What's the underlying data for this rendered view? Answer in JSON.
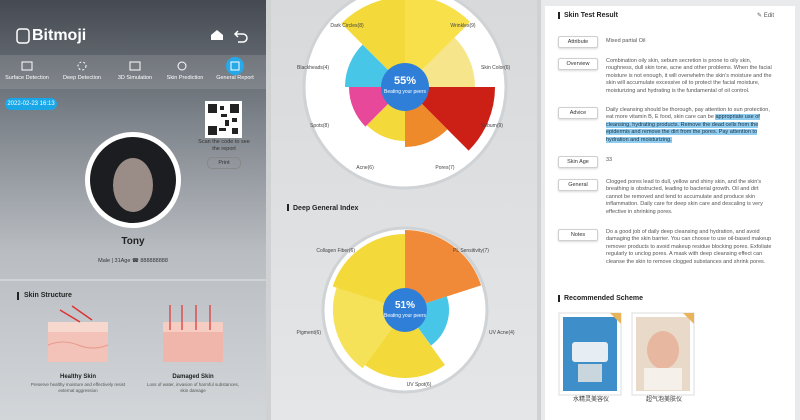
{
  "left": {
    "brand": "Bitmoji",
    "nav": [
      "Surface Detection",
      "Deep Detection",
      "3D Simulation",
      "Skin Prediction",
      "General Report"
    ],
    "timestamp": "2022-02-23 16:13",
    "qr_caption": "Scan the code to see the report",
    "print": "Print",
    "user": {
      "name": "Tony",
      "info": "Male | 31Age",
      "phone": "888888888"
    },
    "section": "Skin Structure",
    "skin_images": [
      {
        "title": "Healthy Skin",
        "caption": "Preserve healthy moisture and effectively resist external aggression"
      },
      {
        "title": "Damaged Skin",
        "caption": "Loss of water, invasion of harmful substances, skin damage"
      }
    ]
  },
  "middle": {
    "charts": [
      {
        "score": "55%",
        "caption": "Beating your peers",
        "labels": [
          "Dark Circles(8)",
          "Wrinkles(9)",
          "Blackheads(4)",
          "Skin Color(6)",
          "Spots(8)",
          "Sebum(9)",
          "Acne(6)",
          "Pores(7)"
        ]
      },
      {
        "score": "51%",
        "caption": "Beating your peers",
        "labels": [
          "Collagen Fiber(6)",
          "PL Sensitivity(7)",
          "Pigment(6)",
          "UV Acne(4)",
          "UV Spot(6)"
        ]
      }
    ],
    "section": "Deep General Index"
  },
  "right": {
    "title": "Skin Test Result",
    "edit": "Edit",
    "rows": [
      {
        "label": "Attribute",
        "text": "Mixed partial Oil"
      },
      {
        "label": "Overview",
        "text": "Combination oily skin, sebum secretion is prone to oily skin, roughness, dull skin tone, acne and other problems. When the facial moisture is not enough, it will overwhelm the skin's moisture and the skin will accumulate excessive oil to protect the facial moisture, moisturizing and hydrating is the fundamental of oil control."
      },
      {
        "label": "Advice",
        "text": "Daily cleansing should be thorough, pay attention to sun protection, eat more vitamin B, E food, skin care can be ",
        "highlight": "appropriate use of cleansing, hydrating products. Remove the dead cells from the epidermis and remove the dirt from the pores. Pay attention to hydration and moisturizing."
      },
      {
        "label": "Skin Age",
        "text": "33"
      },
      {
        "label": "General",
        "text": "Clogged pores lead to dull, yellow and shiny skin, and the skin's breathing is obstructed, leading to bacterial growth. Oil and dirt cannot be removed and tend to accumulate and produce skin inflammation. Daily care for deep skin care and descaling is very effective in shrinking pores."
      },
      {
        "label": "Notes",
        "text": "Do a good job of daily deep cleansing and hydration, and avoid damaging the skin barrier. You can choose to use oil-based makeup remover products to avoid makeup residue blocking pores. Exfoliate regularly to unclog pores. A mask with deep cleansing effect can cleanse the skin to remove clogged substances and shrink pores."
      }
    ],
    "section": "Recommended Scheme",
    "products": [
      "水精灵美容仪",
      "超气泡美肤仪"
    ]
  }
}
